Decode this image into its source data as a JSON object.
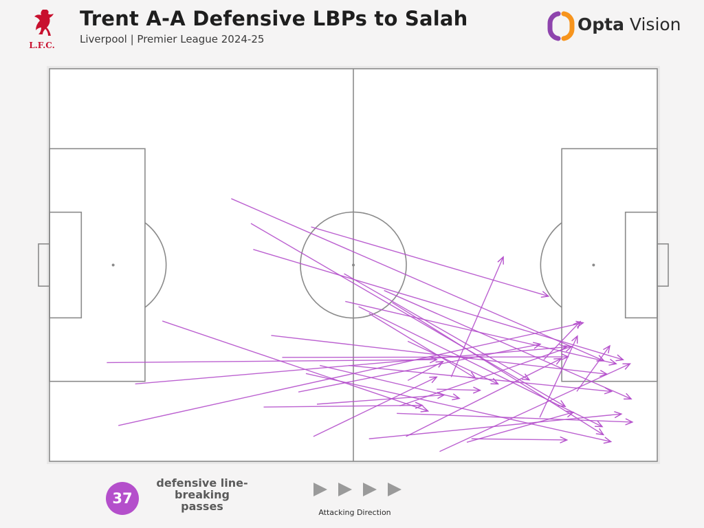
{
  "header": {
    "title": "Trent A-A Defensive LBPs to Salah",
    "subtitle": "Liverpool | Premier League 2024-25",
    "club_logo_text": "L.F.C.",
    "brand_name_bold": "Opta",
    "brand_name_light": " Vision"
  },
  "colors": {
    "background": "#f5f4f4",
    "pitch": "#ffffff",
    "pitch_lines": "#8a8a8a",
    "pass_arrow": "#b44fcb",
    "club_red": "#c8102e",
    "opta_orange": "#f7941d",
    "opta_purple": "#8e44ad",
    "direction_arrow": "#9a9a9a"
  },
  "icons": {
    "club_logo": "liverbird-icon",
    "brand_logo": "opta-logo-icon",
    "direction": "play-arrow-icon"
  },
  "chart_data": {
    "type": "pass-map",
    "pitch_dimensions": {
      "length": 105,
      "width": 68
    },
    "attacking_direction": "left-to-right",
    "count": 37,
    "count_label": "defensive line-breaking passes",
    "direction_label": "Attacking Direction",
    "passes": [
      {
        "start": [
          31.4,
          45.5
        ],
        "end": [
          95.8,
          17.4
        ]
      },
      {
        "start": [
          34.8,
          41.2
        ],
        "end": [
          89.1,
          9.5
        ]
      },
      {
        "start": [
          35.2,
          36.7
        ],
        "end": [
          99.1,
          17.6
        ]
      },
      {
        "start": [
          45.2,
          40.6
        ],
        "end": [
          86.2,
          28.6
        ]
      },
      {
        "start": [
          50.9,
          32.5
        ],
        "end": [
          82.9,
          14.1
        ]
      },
      {
        "start": [
          51.1,
          27.7
        ],
        "end": [
          97.9,
          16.9
        ]
      },
      {
        "start": [
          53.4,
          26.8
        ],
        "end": [
          95.5,
          6.0
        ]
      },
      {
        "start": [
          55.2,
          25.6
        ],
        "end": [
          73.6,
          14.4
        ]
      },
      {
        "start": [
          57.8,
          29.6
        ],
        "end": [
          100.5,
          10.8
        ]
      },
      {
        "start": [
          59.2,
          27.5
        ],
        "end": [
          95.7,
          4.6
        ]
      },
      {
        "start": [
          61.9,
          20.8
        ],
        "end": [
          77.5,
          13.4
        ]
      },
      {
        "start": [
          44.3,
          15.2
        ],
        "end": [
          97.0,
          3.4
        ]
      },
      {
        "start": [
          38.3,
          21.8
        ],
        "end": [
          96.3,
          15.1
        ]
      },
      {
        "start": [
          19.5,
          24.3
        ],
        "end": [
          65.4,
          8.7
        ]
      },
      {
        "start": [
          9.9,
          17.1
        ],
        "end": [
          66.9,
          17.6
        ]
      },
      {
        "start": [
          14.8,
          13.4
        ],
        "end": [
          89.3,
          19.8
        ]
      },
      {
        "start": [
          11.9,
          6.2
        ],
        "end": [
          92.2,
          24.0
        ]
      },
      {
        "start": [
          40.2,
          18.0
        ],
        "end": [
          89.6,
          18.1
        ]
      },
      {
        "start": [
          46.7,
          16.6
        ],
        "end": [
          70.8,
          10.9
        ]
      },
      {
        "start": [
          43.0,
          12.0
        ],
        "end": [
          84.8,
          20.3
        ]
      },
      {
        "start": [
          37.0,
          9.4
        ],
        "end": [
          64.4,
          9.7
        ]
      },
      {
        "start": [
          46.2,
          9.9
        ],
        "end": [
          68.2,
          11.5
        ]
      },
      {
        "start": [
          51.7,
          16.6
        ],
        "end": [
          97.1,
          12.1
        ]
      },
      {
        "start": [
          60.5,
          9.6
        ],
        "end": [
          90.2,
          19.9
        ]
      },
      {
        "start": [
          61.9,
          14.0
        ],
        "end": [
          68.0,
          17.3
        ]
      },
      {
        "start": [
          66.9,
          12.5
        ],
        "end": [
          74.4,
          12.3
        ]
      },
      {
        "start": [
          45.6,
          4.3
        ],
        "end": [
          66.9,
          14.6
        ]
      },
      {
        "start": [
          55.2,
          3.9
        ],
        "end": [
          98.8,
          8.2
        ]
      },
      {
        "start": [
          61.6,
          4.3
        ],
        "end": [
          88.4,
          17.8
        ]
      },
      {
        "start": [
          67.4,
          1.7
        ],
        "end": [
          100.3,
          16.9
        ]
      },
      {
        "start": [
          72.1,
          3.3
        ],
        "end": [
          90.5,
          8.5
        ]
      },
      {
        "start": [
          60.0,
          8.3
        ],
        "end": [
          100.7,
          6.8
        ]
      },
      {
        "start": [
          72.9,
          3.9
        ],
        "end": [
          89.4,
          3.7
        ]
      },
      {
        "start": [
          84.7,
          7.6
        ],
        "end": [
          91.2,
          21.7
        ]
      },
      {
        "start": [
          69.4,
          14.6
        ],
        "end": [
          78.4,
          35.4
        ]
      },
      {
        "start": [
          91.1,
          12.1
        ],
        "end": [
          96.8,
          20.0
        ]
      },
      {
        "start": [
          85.4,
          17.6
        ],
        "end": [
          91.7,
          24.2
        ]
      }
    ]
  }
}
